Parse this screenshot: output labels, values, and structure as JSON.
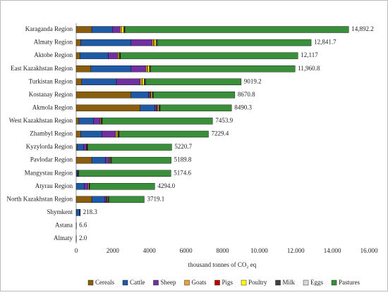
{
  "chart_data": {
    "type": "stacked-bar-horizontal",
    "x_label": "thousand tonnes of CO₂ eq",
    "categories": [
      "Karaganda Region",
      "Almaty Region",
      "Aktobe Region",
      "East Kazakhstan Region",
      "Turkistan Region",
      "Kostanay Region",
      "Akmola Region",
      "West Kazakhstan Region",
      "Zhambyl Region",
      "Kyzylorda Region",
      "Pavlodar Region",
      "Mangystau Region",
      "Atyrau Region",
      "North Kazakhstan Region",
      "Shymkent",
      "Astana",
      "Almaty"
    ],
    "series": [
      {
        "name": "Cereals",
        "color": "#8b5e0f",
        "values": [
          850,
          250,
          200,
          800,
          300,
          3000,
          3500,
          150,
          250,
          50,
          850,
          0,
          0,
          850,
          5,
          0,
          0
        ]
      },
      {
        "name": "Cattle",
        "color": "#1f5aa6",
        "values": [
          1150,
          2750,
          1550,
          2200,
          1900,
          950,
          800,
          800,
          1150,
          350,
          750,
          50,
          450,
          700,
          190,
          5,
          1.5
        ]
      },
      {
        "name": "Sheep",
        "color": "#7030a0",
        "values": [
          400,
          1150,
          500,
          800,
          1300,
          100,
          100,
          350,
          750,
          150,
          200,
          50,
          200,
          100,
          15,
          0,
          0
        ]
      },
      {
        "name": "Goats",
        "color": "#e8a33d",
        "values": [
          100,
          80,
          60,
          80,
          100,
          20,
          20,
          50,
          80,
          30,
          20,
          20,
          50,
          10,
          3,
          0,
          0
        ]
      },
      {
        "name": "Pigs",
        "color": "#c00000",
        "values": [
          0,
          30,
          10,
          20,
          10,
          20,
          30,
          5,
          10,
          0,
          10,
          0,
          0,
          20,
          0,
          0,
          0
        ]
      },
      {
        "name": "Poultry",
        "color": "#ffff00",
        "values": [
          100,
          100,
          40,
          100,
          100,
          60,
          60,
          30,
          50,
          10,
          40,
          5,
          10,
          40,
          2,
          1,
          0.3
        ]
      },
      {
        "name": "Milk",
        "color": "#404040",
        "values": [
          50,
          50,
          40,
          50,
          50,
          50,
          60,
          30,
          40,
          20,
          40,
          5,
          20,
          50,
          2,
          0.5,
          0.2
        ]
      },
      {
        "name": "Eggs",
        "color": "#d9d9d9",
        "values": [
          30,
          30,
          20,
          30,
          30,
          20,
          20,
          10,
          20,
          10,
          20,
          2,
          5,
          20,
          1,
          0.1,
          0
        ]
      },
      {
        "name": "Pastures",
        "color": "#3a8f3a",
        "values": [
          12212.2,
          8401.7,
          9697,
          7880.8,
          5229.2,
          4450.8,
          3900.3,
          6028.9,
          4879.4,
          4600.7,
          3259.8,
          5042.6,
          3559,
          1929.1,
          0.3,
          0,
          0
        ]
      }
    ],
    "totals": [
      14892.2,
      12841.7,
      12117,
      11960.8,
      9019.2,
      8670.8,
      8490.3,
      7453.9,
      7229.4,
      5220.7,
      5189.8,
      5174.6,
      4294,
      3719.1,
      218.3,
      6.6,
      2.0
    ],
    "total_labels": [
      "14,892.2",
      "12,841.7",
      "12,117",
      "11,960.8",
      "9019.2",
      "8670.8",
      "8490.3",
      "7453.9",
      "7229.4",
      "5220.7",
      "5189.8",
      "5174.6",
      "4294.0",
      "3719.1",
      "218.3",
      "6.6",
      "2.0"
    ],
    "xlim": [
      0,
      16000
    ],
    "xticks": [
      0,
      2000,
      4000,
      6000,
      8000,
      {
        "value": 10000,
        "label": "10.000"
      },
      {
        "value": 12000,
        "label": "12.000"
      },
      {
        "value": 14000,
        "label": "14.000"
      },
      {
        "value": 16000,
        "label": "16.000"
      }
    ],
    "grid": false,
    "legend": "bottom"
  }
}
